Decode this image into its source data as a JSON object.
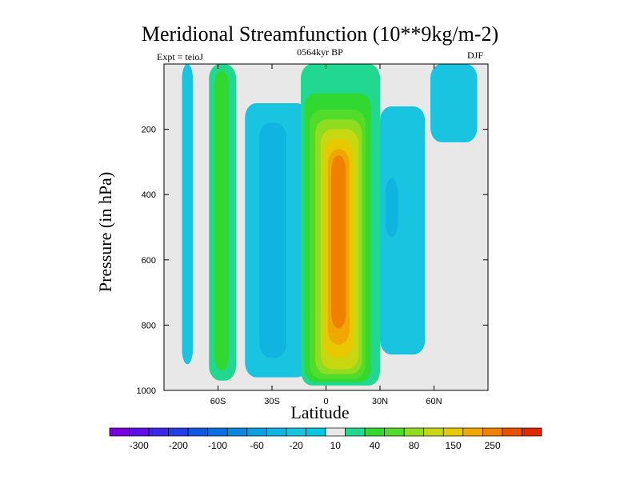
{
  "chart_data": {
    "type": "contour",
    "title": "Meridional Streamfunction (10**9kg/m-2)",
    "subtitle_left": "Expt = teioJ",
    "subtitle_center": "0564kyr BP",
    "subtitle_right": "DJF",
    "xlabel": "Latitude",
    "ylabel": "Pressure (in hPa)",
    "xlim": [
      -90,
      90
    ],
    "ylim": [
      1000,
      0
    ],
    "y_inverted": true,
    "x_ticks": [
      -60,
      -30,
      0,
      30,
      60
    ],
    "x_tick_labels": [
      "60S",
      "30S",
      "0",
      "30N",
      "60N"
    ],
    "y_ticks": [
      200,
      400,
      600,
      800,
      1000
    ],
    "y_tick_labels": [
      "200",
      "400",
      "600",
      "800",
      "1000"
    ],
    "background_color": "#e8e8e8",
    "levels": [
      -350,
      -300,
      -250,
      -200,
      -150,
      -100,
      -80,
      -60,
      -40,
      -20,
      -10,
      10,
      20,
      40,
      60,
      80,
      100,
      150,
      200,
      250,
      300
    ],
    "colorbar": {
      "colors": [
        "#7a00e0",
        "#5c10e6",
        "#3a28e6",
        "#2040e6",
        "#1058e0",
        "#0a70e0",
        "#0a88e0",
        "#0aa0e0",
        "#10b4e0",
        "#18c4e0",
        "#00c8e0",
        "#e8e8e8",
        "#20d890",
        "#30d830",
        "#50dc28",
        "#90dc20",
        "#c8d810",
        "#e8c800",
        "#f0a800",
        "#f08000",
        "#e85000",
        "#e02800"
      ],
      "labels": [
        "-300",
        "-200",
        "-100",
        "-60",
        "-20",
        "10",
        "40",
        "80",
        "150",
        "250"
      ],
      "label_cell_index": [
        1,
        3,
        5,
        7,
        9,
        11,
        13,
        15,
        17,
        19
      ]
    },
    "regions": [
      {
        "name": "SH polar cell",
        "lat_range": [
          -80,
          -74
        ],
        "p_range": [
          0,
          920
        ],
        "level_min": -20,
        "color_index": 9
      },
      {
        "name": "SH Ferrel cell outer",
        "lat_range": [
          -65,
          -50
        ],
        "p_range": [
          0,
          970
        ],
        "level_min": 10,
        "color_index": 12
      },
      {
        "name": "SH Ferrel cell core",
        "lat_range": [
          -62,
          -54
        ],
        "p_range": [
          20,
          940
        ],
        "level_min": 20,
        "color_index": 13
      },
      {
        "name": "SH Hadley negative outer",
        "lat_range": [
          -45,
          -10
        ],
        "p_range": [
          120,
          960
        ],
        "level_min": -20,
        "color_index": 9
      },
      {
        "name": "SH Hadley negative core",
        "lat_range": [
          -37,
          -22
        ],
        "p_range": [
          180,
          900
        ],
        "level_min": -40,
        "color_index": 8
      },
      {
        "name": "Hadley cell 10",
        "lat_range": [
          -14,
          30
        ],
        "p_range": [
          0,
          985
        ],
        "level_min": 10,
        "color_index": 12
      },
      {
        "name": "Hadley cell 40",
        "lat_range": [
          -12,
          25
        ],
        "p_range": [
          90,
          975
        ],
        "level_min": 40,
        "color_index": 13
      },
      {
        "name": "Hadley cell 60",
        "lat_range": [
          -9,
          22
        ],
        "p_range": [
          140,
          965
        ],
        "level_min": 60,
        "color_index": 14
      },
      {
        "name": "Hadley cell 80",
        "lat_range": [
          -6,
          20
        ],
        "p_range": [
          170,
          950
        ],
        "level_min": 80,
        "color_index": 15
      },
      {
        "name": "Hadley cell 100",
        "lat_range": [
          -3,
          18
        ],
        "p_range": [
          200,
          935
        ],
        "level_min": 100,
        "color_index": 16
      },
      {
        "name": "Hadley cell 150",
        "lat_range": [
          -1,
          15
        ],
        "p_range": [
          230,
          900
        ],
        "level_min": 150,
        "color_index": 17
      },
      {
        "name": "Hadley cell 200",
        "lat_range": [
          1,
          13
        ],
        "p_range": [
          260,
          860
        ],
        "level_min": 200,
        "color_index": 18
      },
      {
        "name": "Hadley cell core",
        "lat_range": [
          3,
          11
        ],
        "p_range": [
          280,
          810
        ],
        "level_min": 250,
        "color_index": 19
      },
      {
        "name": "NH Ferrel negative",
        "lat_range": [
          30,
          55
        ],
        "p_range": [
          130,
          890
        ],
        "level_min": -20,
        "color_index": 9
      },
      {
        "name": "NH negative core",
        "lat_range": [
          33,
          40
        ],
        "p_range": [
          350,
          530
        ],
        "level_min": -40,
        "color_index": 8
      },
      {
        "name": "NH polar upper",
        "lat_range": [
          58,
          84
        ],
        "p_range": [
          0,
          240
        ],
        "level_min": -20,
        "color_index": 9
      }
    ]
  }
}
